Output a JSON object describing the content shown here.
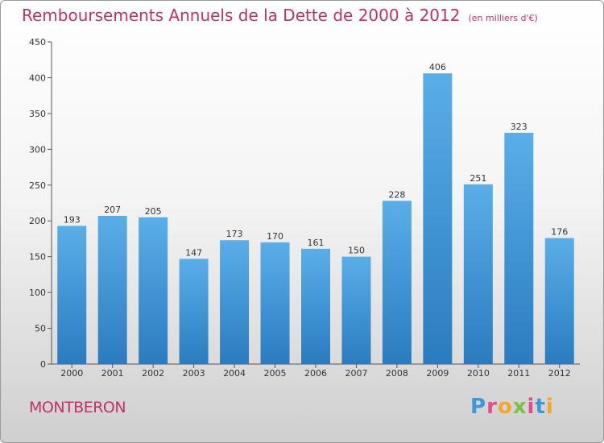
{
  "chart_data": {
    "type": "bar",
    "title": "Remboursements Annuels de la Dette de 2000 à 2012",
    "unit_note": "(en milliers d'€)",
    "categories": [
      "2000",
      "2001",
      "2002",
      "2003",
      "2004",
      "2005",
      "2006",
      "2007",
      "2008",
      "2009",
      "2010",
      "2011",
      "2012"
    ],
    "values": [
      193,
      207,
      205,
      147,
      173,
      170,
      161,
      150,
      228,
      406,
      251,
      323,
      176
    ],
    "ylim": [
      0,
      450
    ],
    "yticks": [
      0,
      50,
      100,
      150,
      200,
      250,
      300,
      350,
      400,
      450
    ],
    "grid": false,
    "bar_color_top": "#5aaee8",
    "bar_color_bottom": "#2a7cc0"
  },
  "commune": "MONTBERON",
  "logo": {
    "letters": [
      "P",
      "r",
      "o",
      "x",
      "i",
      "t",
      "i"
    ],
    "colors": [
      "#3a9ad9",
      "#e84b8a",
      "#f5a623",
      "#7cc142",
      "#e84b8a",
      "#3a9ad9",
      "#f5a623"
    ]
  },
  "colors": {
    "title": "#c0306a"
  }
}
